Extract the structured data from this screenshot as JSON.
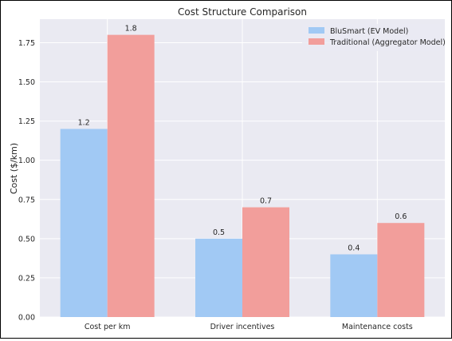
{
  "chart_data": {
    "type": "bar",
    "title": "Cost Structure Comparison",
    "xlabel": "",
    "ylabel": "Cost ($/km)",
    "ylim": [
      0,
      1.9
    ],
    "yticks": [
      0,
      0.25,
      0.5,
      0.75,
      1.0,
      1.25,
      1.5,
      1.75
    ],
    "ytick_labels": [
      "0.00",
      "0.25",
      "0.50",
      "0.75",
      "1.00",
      "1.25",
      "1.50",
      "1.75"
    ],
    "categories": [
      "Cost per km",
      "Driver incentives",
      "Maintenance costs"
    ],
    "series": [
      {
        "name": "BluSmart (EV Model)",
        "values": [
          1.2,
          0.5,
          0.4
        ],
        "labels": [
          "1.2",
          "0.5",
          "0.4"
        ],
        "color": "#a1c9f4"
      },
      {
        "name": "Traditional (Aggregator Model)",
        "values": [
          1.8,
          0.7,
          0.6
        ],
        "labels": [
          "1.8",
          "0.7",
          "0.6"
        ],
        "color": "#f29e9b"
      }
    ],
    "grid": true,
    "legend_position": "top-right",
    "background": "#eaeaf2",
    "grid_color": "#ffffff"
  }
}
